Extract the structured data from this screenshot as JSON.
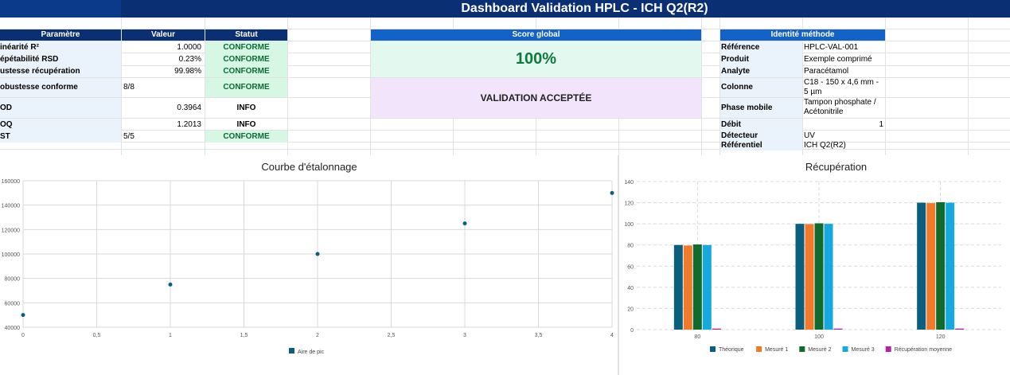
{
  "title": "Dashboard Validation HPLC - ICH Q2(R2)",
  "params": {
    "headers": [
      "Paramètre",
      "Valeur",
      "Statut"
    ],
    "rows": [
      {
        "name": "inéarité R²",
        "value": "1.0000",
        "status": "CONFORME"
      },
      {
        "name": "épétabilité RSD",
        "value": "0.23%",
        "status": "CONFORME"
      },
      {
        "name": "ustesse récupération",
        "value": "99.98%",
        "status": "CONFORME"
      },
      {
        "name": "obustesse conforme",
        "value": "8/8",
        "status": "CONFORME"
      },
      {
        "name": "OD",
        "value": "0.3964",
        "status": "INFO"
      },
      {
        "name": "OQ",
        "value": "1.2013",
        "status": "INFO"
      },
      {
        "name": "ST",
        "value": "5/5",
        "status": "CONFORME"
      }
    ]
  },
  "score": {
    "header": "Score global",
    "value": "100%",
    "verdict": "VALIDATION ACCEPTÉE"
  },
  "identity": {
    "header": "Identité méthode",
    "rows": [
      {
        "label": "Référence",
        "value": "HPLC-VAL-001"
      },
      {
        "label": "Produit",
        "value": "Exemple comprimé"
      },
      {
        "label": "Analyte",
        "value": "Paracétamol"
      },
      {
        "label": "Colonne",
        "value": "C18 - 150 x 4,6 mm - 5 µm"
      },
      {
        "label": "Phase mobile",
        "value": "Tampon phosphate / Acétonitrile"
      },
      {
        "label": "Débit",
        "value": "1"
      },
      {
        "label": "Détecteur",
        "value": "UV"
      },
      {
        "label": "Référentiel",
        "value": "ICH Q2(R2)"
      }
    ]
  },
  "chart_data": [
    {
      "type": "scatter",
      "title": "Courbe d'étalonnage",
      "x_ticks": [
        "0",
        "0,5",
        "1",
        "1,5",
        "2",
        "2,5",
        "3",
        "3,5",
        "4"
      ],
      "y_ticks": [
        "40000",
        "60000",
        "80000",
        "100000",
        "120000",
        "140000",
        "160000"
      ],
      "xlim": [
        0,
        4
      ],
      "ylim": [
        40000,
        160000
      ],
      "series": [
        {
          "name": "Aire de pic",
          "color": "#0b5e7e",
          "x": [
            0,
            1,
            2,
            3,
            4
          ],
          "y": [
            50000,
            75000,
            100000,
            125000,
            150000
          ]
        }
      ],
      "legend": "bottom",
      "grid": true
    },
    {
      "type": "bar",
      "title": "Récupération",
      "categories": [
        "80",
        "100",
        "120"
      ],
      "y_ticks": [
        "0",
        "20",
        "40",
        "60",
        "80",
        "100",
        "120",
        "140"
      ],
      "ylim": [
        0,
        140
      ],
      "series": [
        {
          "name": "Théorique",
          "color": "#0b5e7e",
          "values": [
            80,
            100,
            120
          ]
        },
        {
          "name": "Mesuré 1",
          "color": "#f07a2a",
          "values": [
            79.5,
            99.8,
            119.6
          ]
        },
        {
          "name": "Mesuré 2",
          "color": "#116b2e",
          "values": [
            80.5,
            100.5,
            120.5
          ]
        },
        {
          "name": "Mesuré 3",
          "color": "#17a9de",
          "values": [
            80,
            100,
            120
          ]
        },
        {
          "name": "Récupération moyenne",
          "color": "#b3259e",
          "values": [
            1,
            1,
            1
          ]
        }
      ],
      "legend": "bottom",
      "grid": true
    }
  ]
}
